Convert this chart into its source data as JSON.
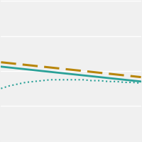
{
  "x": [
    0,
    1,
    2,
    3,
    4,
    5,
    6,
    7,
    8,
    9,
    10,
    11,
    12,
    13,
    14,
    15,
    16,
    17
  ],
  "solid_line": [
    0.85,
    0.84,
    0.83,
    0.82,
    0.81,
    0.8,
    0.79,
    0.78,
    0.77,
    0.76,
    0.75,
    0.74,
    0.73,
    0.72,
    0.71,
    0.7,
    0.69,
    0.68
  ],
  "dashed_line": [
    0.9,
    0.89,
    0.88,
    0.87,
    0.86,
    0.85,
    0.84,
    0.83,
    0.82,
    0.81,
    0.8,
    0.79,
    0.78,
    0.77,
    0.76,
    0.75,
    0.74,
    0.73
  ],
  "dotted_line": [
    0.6,
    0.63,
    0.65,
    0.67,
    0.68,
    0.69,
    0.7,
    0.7,
    0.7,
    0.7,
    0.7,
    0.69,
    0.69,
    0.68,
    0.68,
    0.67,
    0.67,
    0.66
  ],
  "solid_color": "#2aa198",
  "dashed_color": "#b8860b",
  "dotted_color": "#2aa198",
  "background_color": "#f0f0f0",
  "plot_bg_color": "#f0f0f0",
  "ylim": [
    0.0,
    1.6
  ],
  "xlim": [
    0,
    17
  ],
  "grid_color": "#ffffff",
  "grid_lw": 1.0,
  "n_gridlines": 4,
  "figsize": [
    2.0,
    2.0
  ],
  "dpi": 100
}
